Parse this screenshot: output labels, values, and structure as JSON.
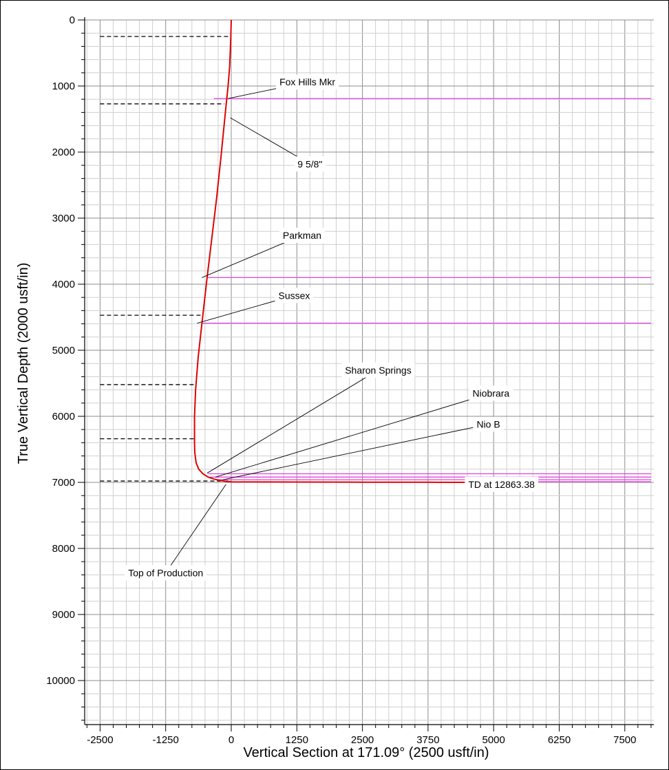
{
  "chart_data": {
    "type": "line",
    "xlabel": "Vertical Section at 171.09° (2500 usft/in)",
    "ylabel": "True Vertical Depth (2000 usft/in)",
    "xlim": [
      -2800,
      8000
    ],
    "ylim": [
      0,
      10500
    ],
    "y_inverted": true,
    "grid": true,
    "x_ticks": [
      -2500,
      -1250,
      0,
      1250,
      2500,
      3750,
      5000,
      6250,
      7500
    ],
    "y_ticks": [
      0,
      1000,
      2000,
      3000,
      4000,
      5000,
      6000,
      7000,
      8000,
      9000,
      10000
    ],
    "colors": {
      "well_path": "#e00000",
      "formation": "#e040e0",
      "grid_major": "#8c8c8c",
      "grid_minor": "#cfcfcf",
      "casing": "#000000"
    },
    "series": [
      {
        "color": "#e00000",
        "x": [
          0,
          -10,
          -30,
          -60,
          -100,
          -150,
          -200,
          -280,
          -370,
          -460,
          -560,
          -630,
          -680,
          -700,
          -700,
          -700,
          -695,
          -670,
          -620,
          -540,
          -440,
          -330,
          -220,
          -100,
          0,
          1250,
          2500,
          3750,
          5000,
          5250
        ],
        "y": [
          0,
          300,
          700,
          1000,
          1300,
          1700,
          2100,
          2700,
          3300,
          3900,
          4600,
          5100,
          5600,
          6000,
          6300,
          6400,
          6550,
          6700,
          6800,
          6870,
          6920,
          6950,
          6970,
          6985,
          6992,
          6995,
          6997,
          6998,
          7000,
          7000
        ]
      }
    ],
    "formations": [
      {
        "name": "Fox Hills Mkr",
        "tvd": 1190,
        "x_from": -330,
        "x_to": 8000
      },
      {
        "name": "Parkman",
        "tvd": 3900,
        "x_from": -460,
        "x_to": 8000
      },
      {
        "name": "Sussex",
        "tvd": 4590,
        "x_from": -560,
        "x_to": 8000
      },
      {
        "name": "Sharon Springs",
        "tvd": 6870,
        "x_from": -440,
        "x_to": 8000
      },
      {
        "name": "Niobrara",
        "tvd": 6920,
        "x_from": -400,
        "x_to": 8000
      },
      {
        "name": "Nio B",
        "tvd": 6960,
        "x_from": -300,
        "x_to": 8000
      },
      {
        "name": "",
        "tvd": 6990,
        "x_from": 5200,
        "x_to": 8000
      }
    ],
    "casing_points": [
      {
        "x_from": -2500,
        "x_to": 0,
        "tvd": 250
      },
      {
        "x_from": -2500,
        "x_to": -130,
        "tvd": 1270
      },
      {
        "x_from": -2500,
        "x_to": -560,
        "tvd": 4470
      },
      {
        "x_from": -2500,
        "x_to": -700,
        "tvd": 5520
      },
      {
        "x_from": -2500,
        "x_to": -700,
        "tvd": 6340
      },
      {
        "x_from": -2500,
        "x_to": 0,
        "tvd": 6980
      }
    ],
    "annotations": [
      {
        "label": "Fox Hills Mkr",
        "text_at": [
          1450,
          940
        ],
        "point": [
          -60,
          1190
        ]
      },
      {
        "label": "9 5/8\"",
        "text_at": [
          1500,
          2180
        ],
        "point": [
          -20,
          1480
        ]
      },
      {
        "label": "Parkman",
        "text_at": [
          1350,
          3260
        ],
        "point": [
          -560,
          3900
        ]
      },
      {
        "label": "Sussex",
        "text_at": [
          1200,
          4170
        ],
        "point": [
          -650,
          4590
        ]
      },
      {
        "label": "Sharon Springs",
        "text_at": [
          2800,
          5300
        ],
        "point": [
          -460,
          6860
        ]
      },
      {
        "label": "Niobrara",
        "text_at": [
          4950,
          5650
        ],
        "point": [
          -300,
          6920
        ]
      },
      {
        "label": "Nio B",
        "text_at": [
          4900,
          6120
        ],
        "point": [
          -160,
          6960
        ]
      },
      {
        "label": "TD at 12863.38",
        "text_at": [
          5150,
          7030
        ],
        "point": [
          5150,
          7000
        ]
      },
      {
        "label": "Top of Production",
        "text_at": [
          -1250,
          8370
        ],
        "point": [
          -100,
          7030
        ]
      }
    ]
  }
}
